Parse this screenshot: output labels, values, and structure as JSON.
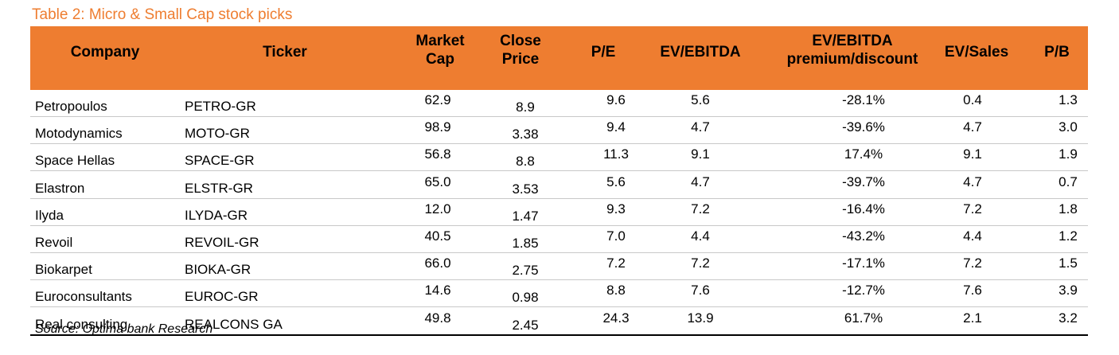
{
  "title": "Table 2: Micro & Small Cap stock picks",
  "colors": {
    "accent": "#ee7d30",
    "header_text": "#000000"
  },
  "columns": [
    {
      "key": "company",
      "label": "Company"
    },
    {
      "key": "ticker",
      "label": "Ticker"
    },
    {
      "key": "mcap",
      "label_lines": [
        "Market",
        "Cap"
      ]
    },
    {
      "key": "close",
      "label_lines": [
        "Close",
        "Price"
      ]
    },
    {
      "key": "pe",
      "label": "P/E"
    },
    {
      "key": "ev",
      "label": "EV/EBITDA"
    },
    {
      "key": "prem",
      "label_lines": [
        "EV/EBITDA",
        "premium/discount"
      ]
    },
    {
      "key": "sales",
      "label": "EV/Sales"
    },
    {
      "key": "pb",
      "label": "P/B"
    }
  ],
  "rows": [
    {
      "company": "Petropoulos",
      "ticker": "PETRO-GR",
      "mcap": "62.9",
      "close": "8.9",
      "pe": "9.6",
      "ev": "5.6",
      "prem": "-28.1%",
      "sales": "0.4",
      "pb": "1.3"
    },
    {
      "company": "Motodynamics",
      "ticker": "MOTO-GR",
      "mcap": "98.9",
      "close": "3.38",
      "pe": "9.4",
      "ev": "4.7",
      "prem": "-39.6%",
      "sales": "4.7",
      "pb": "3.0"
    },
    {
      "company": "Space Hellas",
      "ticker": "SPACE-GR",
      "mcap": "56.8",
      "close": "8.8",
      "pe": "11.3",
      "ev": "9.1",
      "prem": "17.4%",
      "sales": "9.1",
      "pb": "1.9"
    },
    {
      "company": "Elastron",
      "ticker": "ELSTR-GR",
      "mcap": "65.0",
      "close": "3.53",
      "pe": "5.6",
      "ev": "4.7",
      "prem": "-39.7%",
      "sales": "4.7",
      "pb": "0.7"
    },
    {
      "company": "Ilyda",
      "ticker": "ILYDA-GR",
      "mcap": "12.0",
      "close": "1.47",
      "pe": "9.3",
      "ev": "7.2",
      "prem": "-16.4%",
      "sales": "7.2",
      "pb": "1.8"
    },
    {
      "company": "Revoil",
      "ticker": "REVOIL-GR",
      "mcap": "40.5",
      "close": "1.85",
      "pe": "7.0",
      "ev": "4.4",
      "prem": "-43.2%",
      "sales": "4.4",
      "pb": "1.2"
    },
    {
      "company": "Biokarpet",
      "ticker": "BIOKA-GR",
      "mcap": "66.0",
      "close": "2.75",
      "pe": "7.2",
      "ev": "7.2",
      "prem": "-17.1%",
      "sales": "7.2",
      "pb": "1.5"
    },
    {
      "company": "Euroconsultants",
      "ticker": "EUROC-GR",
      "mcap": "14.6",
      "close": "0.98",
      "pe": "8.8",
      "ev": "7.6",
      "prem": "-12.7%",
      "sales": "7.6",
      "pb": "3.9"
    },
    {
      "company": "Real consulting",
      "ticker": "REALCONS GA",
      "mcap": "49.8",
      "close": "2.45",
      "pe": "24.3",
      "ev": "13.9",
      "prem": "61.7%",
      "sales": "2.1",
      "pb": "3.2"
    }
  ],
  "source": "Source: Optima bank Research"
}
